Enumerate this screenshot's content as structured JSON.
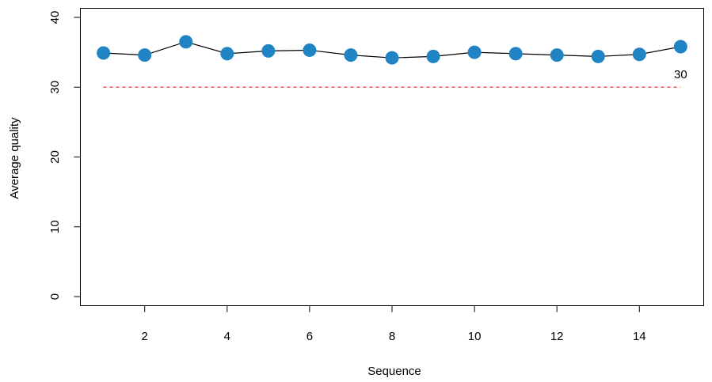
{
  "chart_data": {
    "type": "line",
    "x": [
      1,
      2,
      3,
      4,
      5,
      6,
      7,
      8,
      9,
      10,
      11,
      12,
      13,
      14,
      15
    ],
    "series": [
      {
        "values": [
          34.9,
          34.6,
          36.5,
          34.8,
          35.2,
          35.3,
          34.6,
          34.2,
          34.4,
          35.0,
          34.8,
          34.6,
          34.4,
          34.7,
          35.8
        ]
      }
    ],
    "xlabel": "Sequence",
    "ylabel": "Average quality",
    "xlim": [
      0.44,
      15.56
    ],
    "ylim": [
      -1.3,
      41.3
    ],
    "xticks": [
      2,
      4,
      6,
      8,
      10,
      12,
      14
    ],
    "yticks": [
      0,
      10,
      20,
      30,
      40
    ],
    "reference_line": {
      "y": 30,
      "label": "30",
      "style": "dashed",
      "color": "#e8332c"
    },
    "colors": {
      "points": "#1f83c4",
      "line": "#000000"
    },
    "grid": false
  }
}
